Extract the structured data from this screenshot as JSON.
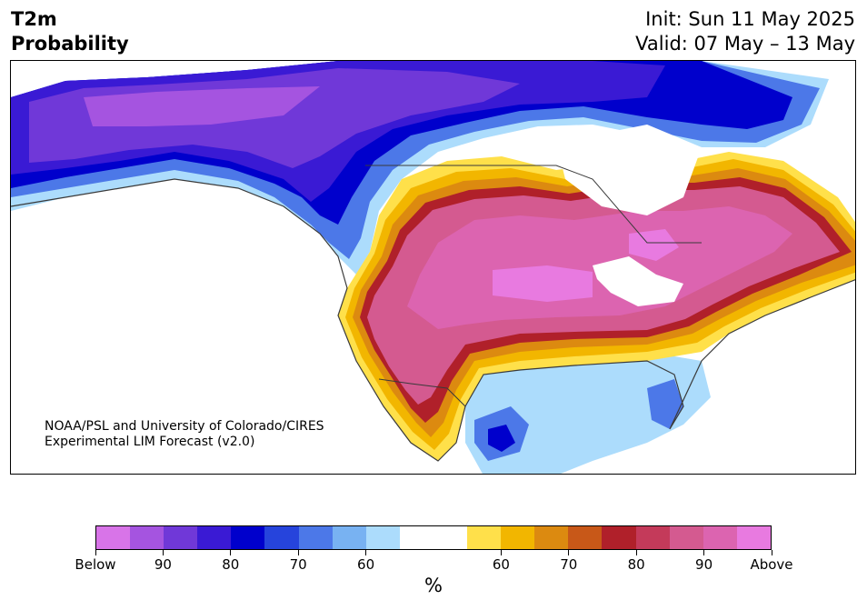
{
  "title": {
    "variable": "T2m",
    "subtitle": "Probability"
  },
  "header": {
    "init": "Init: Sun 11 May 2025",
    "valid": "Valid: 07 May – 13 May"
  },
  "credit": {
    "line1": "NOAA/PSL and University of Colorado/CIRES",
    "line2": "Experimental LIM Forecast (v2.0)"
  },
  "colorbar": {
    "colors": [
      "#d874e8",
      "#a554e0",
      "#7038d8",
      "#3a1ad4",
      "#0000cc",
      "#2644dc",
      "#4c78e8",
      "#78b2f2",
      "#acdcfc",
      "#ffffff",
      "#ffffff",
      "#ffe04a",
      "#f2b600",
      "#dc8a10",
      "#c85818",
      "#b0202a",
      "#c43a5a",
      "#d45a90",
      "#dc64b0",
      "#e87ae0"
    ],
    "tick_labels": [
      "Below",
      "90",
      "80",
      "70",
      "60",
      "60",
      "70",
      "80",
      "90",
      "Above"
    ],
    "unit": "%"
  },
  "map_colors": {
    "below_90": "#a554e0",
    "below_80": "#7038d8",
    "below_70": "#3a1ad4",
    "below_60": "#0000cc",
    "below_55": "#4c78e8",
    "below_50": "#acdcfc",
    "above_55": "#ffe04a",
    "above_60": "#f2b600",
    "above_65": "#dc8a10",
    "above_70": "#b0202a",
    "above_80": "#d45a90",
    "above_90": "#dc64b0",
    "above_max": "#e87ae0",
    "border": "#3a3a3a"
  }
}
